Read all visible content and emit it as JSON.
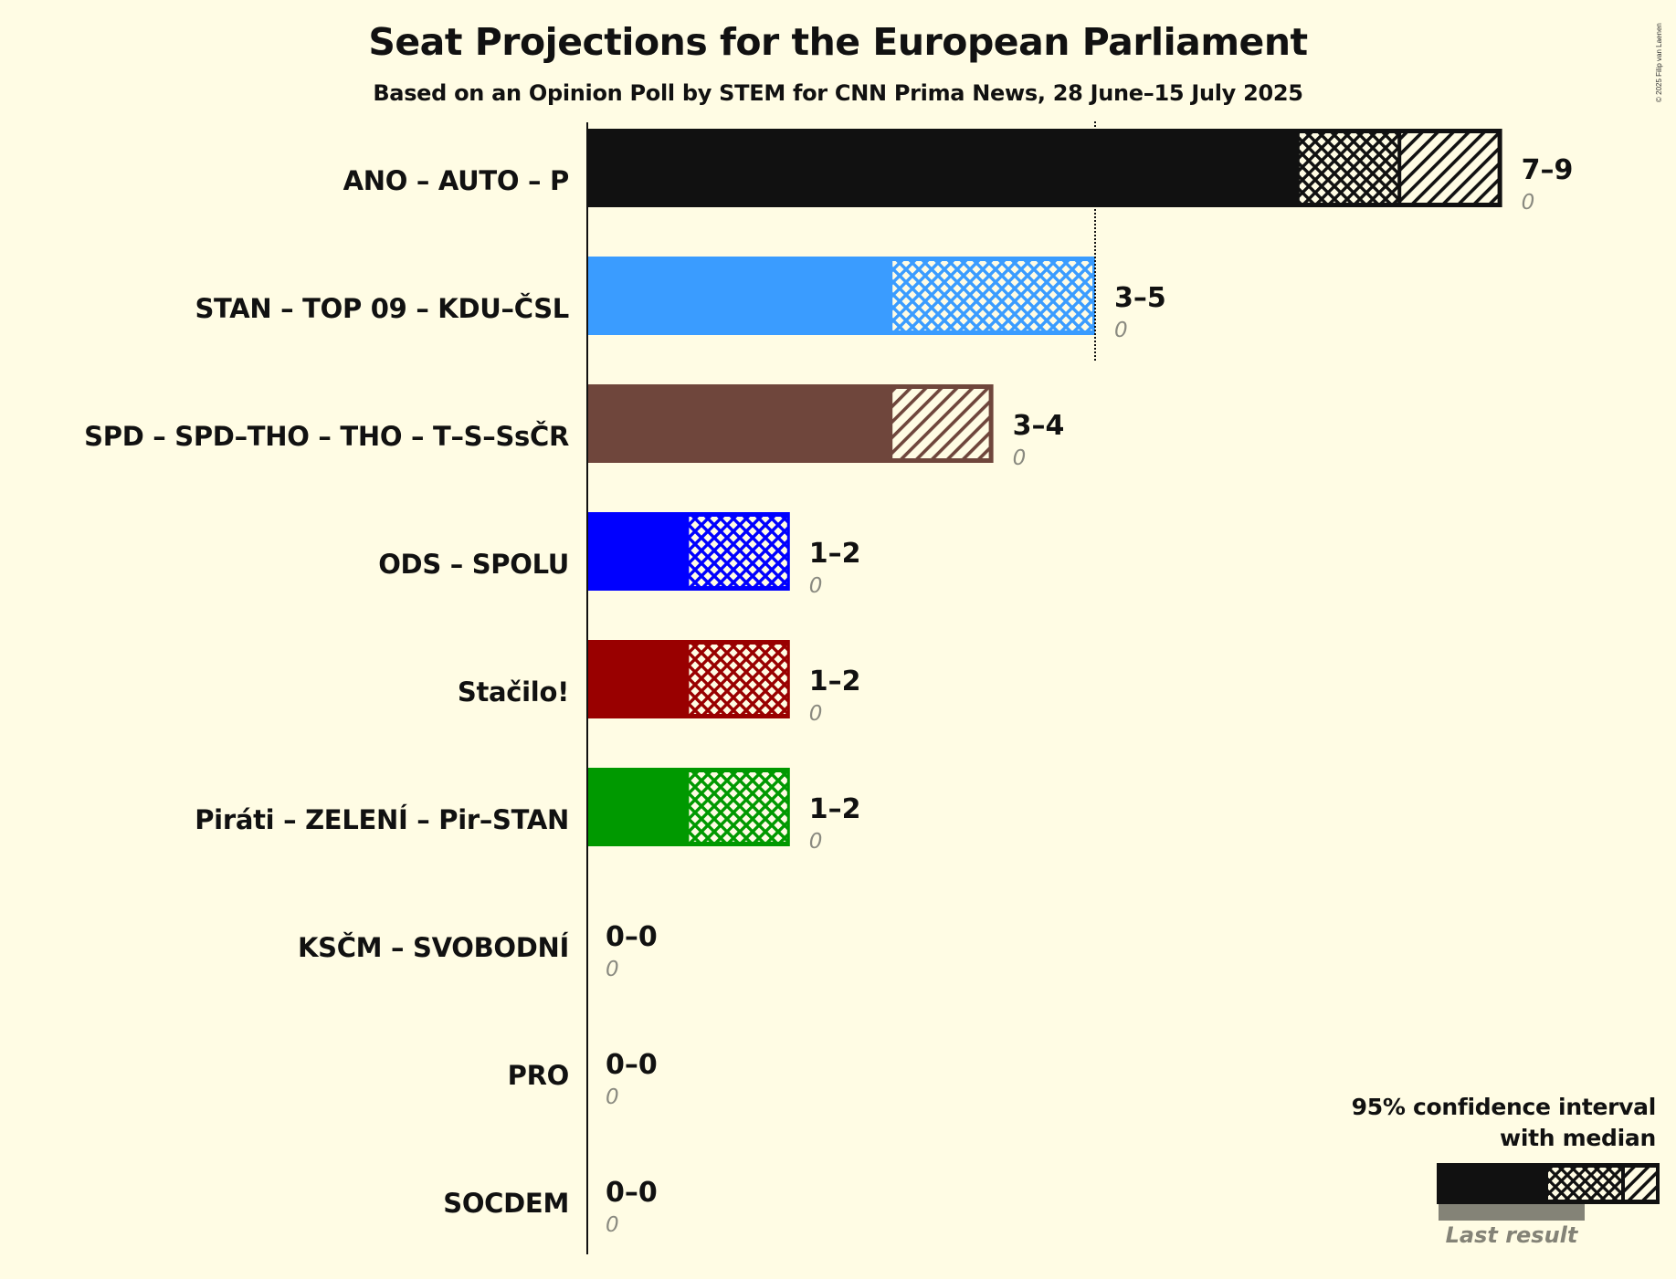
{
  "header": {
    "title": "Seat Projections for the European Parliament",
    "subtitle": "Based on an Opinion Poll by STEM for CNN Prima News, 28 June–15 July 2025",
    "copyright": "© 2025 Filip van Laenen"
  },
  "legend": {
    "line1": "95% confidence interval",
    "line2": "with median",
    "last_result": "Last result"
  },
  "colors": {
    "background": "#FFFCE4",
    "axis": "#111111",
    "last_result": "#848377"
  },
  "parties": [
    {
      "name": "ANO – AUTO – P",
      "color": "#111111",
      "low": 7,
      "median": 8,
      "high": 9,
      "range_label": "7–9",
      "last_result": "0"
    },
    {
      "name": "STAN – TOP 09 – KDU–ČSL",
      "color": "#3A9CFF",
      "low": 3,
      "median": 5,
      "high": 5,
      "range_label": "3–5",
      "last_result": "0"
    },
    {
      "name": "SPD – SPD–THO – THO – T–S–SsČR",
      "color": "#6F463C",
      "low": 3,
      "median": 3,
      "high": 4,
      "range_label": "3–4",
      "last_result": "0"
    },
    {
      "name": "ODS – SPOLU",
      "color": "#0000FF",
      "low": 1,
      "median": 2,
      "high": 2,
      "range_label": "1–2",
      "last_result": "0"
    },
    {
      "name": "Stačilo!",
      "color": "#990000",
      "low": 1,
      "median": 2,
      "high": 2,
      "range_label": "1–2",
      "last_result": "0"
    },
    {
      "name": "Piráti – ZELENÍ – Pir–STAN",
      "color": "#009900",
      "low": 1,
      "median": 2,
      "high": 2,
      "range_label": "1–2",
      "last_result": "0"
    },
    {
      "name": "KSČM – SVOBODNÍ",
      "color": "#111111",
      "low": 0,
      "median": 0,
      "high": 0,
      "range_label": "0–0",
      "last_result": "0"
    },
    {
      "name": "PRO",
      "color": "#111111",
      "low": 0,
      "median": 0,
      "high": 0,
      "range_label": "0–0",
      "last_result": "0"
    },
    {
      "name": "SOCDEM",
      "color": "#111111",
      "low": 0,
      "median": 0,
      "high": 0,
      "range_label": "0–0",
      "last_result": "0"
    }
  ],
  "chart_data": {
    "type": "bar",
    "orientation": "horizontal",
    "title": "Seat Projections for the European Parliament",
    "subtitle": "Based on an Opinion Poll by STEM for CNN Prima News, 28 June–15 July 2025",
    "categories": [
      "ANO – AUTO – P",
      "STAN – TOP 09 – KDU–ČSL",
      "SPD – SPD–THO – THO – T–S–SsČR",
      "ODS – SPOLU",
      "Stačilo!",
      "Piráti – ZELENÍ – Pir–STAN",
      "KSČM – SVOBODNÍ",
      "PRO",
      "SOCDEM"
    ],
    "series": [
      {
        "name": "95% CI low",
        "values": [
          7,
          3,
          3,
          1,
          1,
          1,
          0,
          0,
          0
        ]
      },
      {
        "name": "Median",
        "values": [
          8,
          5,
          3,
          2,
          2,
          2,
          0,
          0,
          0
        ]
      },
      {
        "name": "95% CI high",
        "values": [
          9,
          5,
          4,
          2,
          2,
          2,
          0,
          0,
          0
        ]
      },
      {
        "name": "Last result",
        "values": [
          0,
          0,
          0,
          0,
          0,
          0,
          0,
          0,
          0
        ]
      }
    ],
    "value_labels": [
      "7–9",
      "3–5",
      "3–4",
      "1–2",
      "1–2",
      "1–2",
      "0–0",
      "0–0",
      "0–0"
    ],
    "majority_line": 5,
    "xlabel": "",
    "ylabel": "",
    "xlim": [
      0,
      9
    ],
    "grid": false,
    "legend": {
      "position": "bottom-right",
      "entries": [
        "95% confidence interval with median",
        "Last result"
      ]
    }
  }
}
